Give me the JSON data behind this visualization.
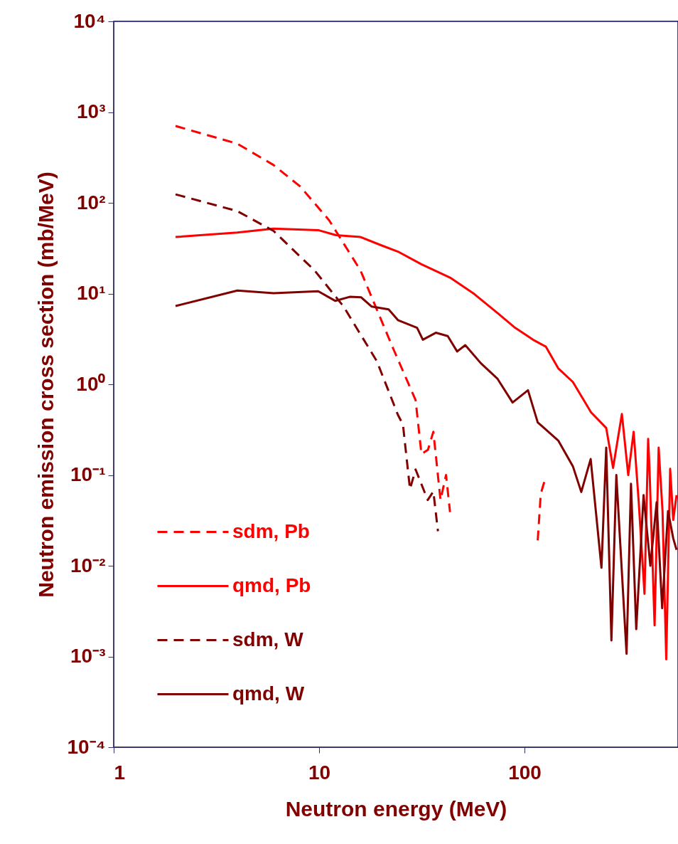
{
  "chart_data": {
    "type": "line",
    "xlabel": "Neutron energy (MeV)",
    "ylabel": "Neutron emission cross section (mb/MeV)",
    "log": "xy",
    "grid": false,
    "legend": "bottom left",
    "marker": "none",
    "xlim": [
      1,
      559
    ],
    "xticks": [
      1,
      10,
      100
    ],
    "ylim": [
      0.0001,
      10000
    ],
    "yticks": [
      {
        "value": 10000,
        "label": "10⁴"
      },
      {
        "value": 1000,
        "label": "10³"
      },
      {
        "value": 100,
        "label": "10²"
      },
      {
        "value": 10,
        "label": "10¹"
      },
      {
        "value": 1,
        "label": "10⁰"
      },
      {
        "value": 0.1,
        "label": "10⁻¹"
      },
      {
        "value": 0.01,
        "label": "10⁻²"
      },
      {
        "value": 0.001,
        "label": "10⁻³"
      },
      {
        "value": 0.0001,
        "label": "10⁻⁴"
      }
    ],
    "series": [
      {
        "name": "sdm, Pb",
        "color": "#ff0000",
        "line_style": "dashed",
        "x": [
          2,
          4,
          6,
          8.1,
          11.2,
          15.9,
          22.9,
          29.5,
          31.5,
          33.9,
          36,
          39,
          41.5,
          43.4,
          80,
          116,
          120,
          125,
          129
        ],
        "values": [
          703,
          448,
          261,
          151,
          64,
          18,
          2.5,
          0.67,
          0.17,
          0.19,
          0.3,
          0.053,
          0.1,
          0.039,
          null,
          0.019,
          0.062,
          0.085,
          0.09
        ]
      },
      {
        "name": "qmd, Pb",
        "color": "#ff0000",
        "line_style": "solid",
        "x": [
          2,
          4,
          6,
          9.9,
          12.1,
          15.9,
          20.1,
          24.2,
          31.5,
          43.4,
          56.9,
          73.9,
          90,
          110,
          127,
          146,
          172,
          211,
          250,
          270,
          298,
          320,
          340,
          360,
          384,
          400,
          406,
          430,
          450,
          470,
          490,
          512,
          530,
          550
        ],
        "values": [
          42,
          47,
          52,
          50,
          44,
          42,
          34,
          29,
          21,
          15,
          9.9,
          6.1,
          4.2,
          3.1,
          2.6,
          1.5,
          1.06,
          0.49,
          0.33,
          0.12,
          0.47,
          0.1,
          0.3,
          0.05,
          0.0049,
          0.25,
          0.12,
          0.0022,
          0.2,
          0.04,
          0.00093,
          0.117,
          0.032,
          0.06
        ]
      },
      {
        "name": "sdm, W",
        "color": "#800000",
        "line_style": "dashed",
        "x": [
          2,
          4,
          6,
          9.5,
          13.1,
          19.1,
          24.2,
          25.6,
          27.7,
          29.5,
          33.8,
          36,
          37.9
        ],
        "values": [
          124,
          81,
          49,
          18,
          7.3,
          1.8,
          0.46,
          0.36,
          0.07,
          0.115,
          0.053,
          0.066,
          0.024
        ]
      },
      {
        "name": "qmd, W",
        "color": "#800000",
        "line_style": "solid",
        "x": [
          2,
          4,
          6,
          9.9,
          12,
          14.1,
          16,
          18,
          21.8,
          24.2,
          30,
          32,
          37,
          42.3,
          47,
          51.5,
          61.4,
          73.7,
          87.5,
          104,
          116,
          146,
          172,
          189,
          210,
          237,
          250,
          265,
          280,
          314,
          330,
          350,
          380,
          410,
          440,
          468,
          500,
          530,
          550
        ],
        "values": [
          7.3,
          10.8,
          10.1,
          10.6,
          8.3,
          9.2,
          9.1,
          7.2,
          6.7,
          5.1,
          4.2,
          3.1,
          3.7,
          3.4,
          2.3,
          2.7,
          1.7,
          1.16,
          0.63,
          0.86,
          0.38,
          0.24,
          0.125,
          0.065,
          0.15,
          0.0095,
          0.2,
          0.0015,
          0.1,
          0.00107,
          0.08,
          0.002,
          0.06,
          0.01,
          0.05,
          0.0034,
          0.04,
          0.02,
          0.015
        ]
      }
    ]
  }
}
